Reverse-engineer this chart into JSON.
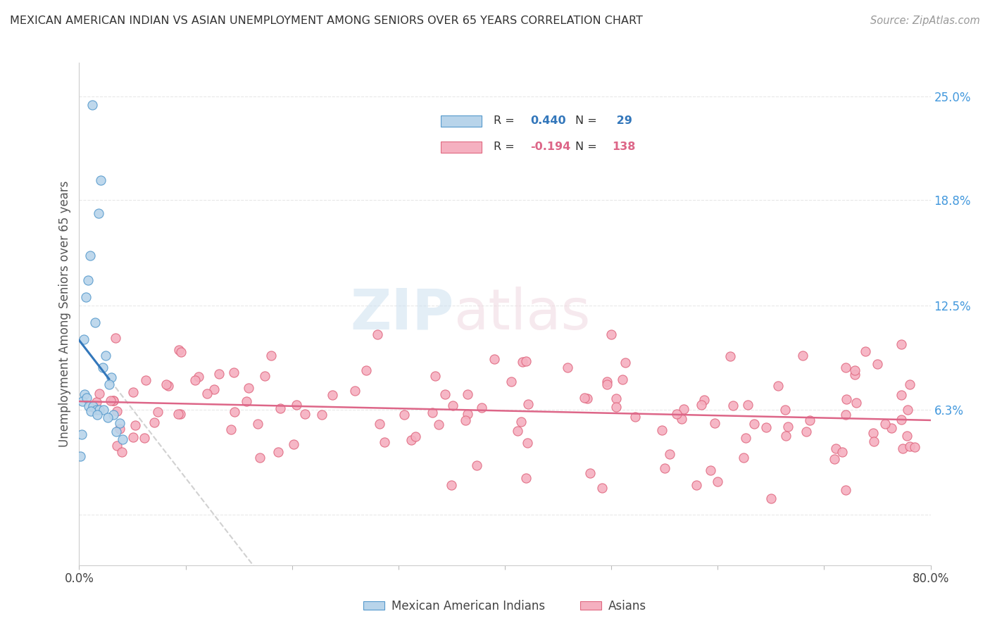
{
  "title": "MEXICAN AMERICAN INDIAN VS ASIAN UNEMPLOYMENT AMONG SENIORS OVER 65 YEARS CORRELATION CHART",
  "source": "Source: ZipAtlas.com",
  "ylabel": "Unemployment Among Seniors over 65 years",
  "xlim": [
    0.0,
    0.8
  ],
  "ylim": [
    -0.03,
    0.27
  ],
  "blue_R": 0.44,
  "blue_N": 29,
  "pink_R": -0.194,
  "pink_N": 138,
  "blue_color": "#b8d4ea",
  "pink_color": "#f5b0c0",
  "blue_edge_color": "#5599cc",
  "pink_edge_color": "#e06880",
  "blue_line_color": "#3377bb",
  "pink_line_color": "#dd6688",
  "gray_dash_color": "#cccccc",
  "grid_color": "#e8e8e8",
  "legend_label_blue": "Mexican American Indians",
  "legend_label_pink": "Asians",
  "right_tick_color": "#4499dd",
  "ytick_positions": [
    0.0,
    0.063,
    0.125,
    0.188,
    0.25
  ],
  "ytick_labels": [
    "",
    "6.3%",
    "12.5%",
    "18.8%",
    "25.0%"
  ],
  "xtick_positions": [
    0.0,
    0.1,
    0.2,
    0.3,
    0.4,
    0.5,
    0.6,
    0.7,
    0.8
  ],
  "xtick_labels": [
    "0.0%",
    "",
    "",
    "",
    "",
    "",
    "",
    "",
    "80.0%"
  ]
}
